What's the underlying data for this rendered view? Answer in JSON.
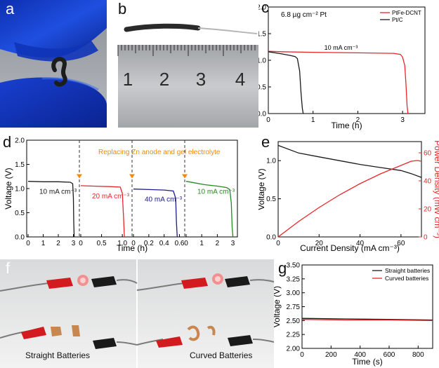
{
  "panels": {
    "a": {
      "label": "a"
    },
    "b": {
      "label": "b",
      "ruler_numbers": [
        "1",
        "2",
        "3",
        "4"
      ]
    },
    "c": {
      "label": "c"
    },
    "d": {
      "label": "d"
    },
    "e": {
      "label": "e"
    },
    "f": {
      "label": "f",
      "left_caption": "Straight Batteries",
      "right_caption": "Curved Batteries"
    },
    "g": {
      "label": "g"
    }
  },
  "colors": {
    "red": "#e8262a",
    "black": "#1a1a1a",
    "blue": "#1c1c8c",
    "green": "#1f8c1f",
    "orange": "#f08a0c"
  },
  "chart_data": [
    {
      "id": "c",
      "type": "line",
      "xlabel": "Time (h)",
      "ylabel": "Voltage (V)",
      "xlim": [
        0,
        3.5
      ],
      "ylim": [
        0,
        2.0
      ],
      "xticks": [
        0,
        1,
        2,
        3
      ],
      "yticks": [
        0.0,
        0.5,
        1.0,
        1.5,
        2.0
      ],
      "ytick_labels": [
        "0.0",
        "0.5",
        "1.0",
        "1.5",
        "2.0"
      ],
      "annotations": [
        "6.8 µg cm⁻² Pt",
        "10 mA cm⁻³"
      ],
      "legend_placement": "top-right",
      "series": [
        {
          "name": "PtFe-DCNT",
          "color": "#e8262a",
          "x": [
            0,
            0.3,
            1.0,
            2.0,
            2.8,
            2.95,
            3.0,
            3.05,
            3.08,
            3.1,
            3.12
          ],
          "y": [
            1.17,
            1.16,
            1.15,
            1.14,
            1.13,
            1.11,
            1.06,
            0.9,
            0.5,
            0.15,
            0.0
          ]
        },
        {
          "name": "Pt/C",
          "color": "#1a1a1a",
          "x": [
            0,
            0.3,
            0.5,
            0.6,
            0.65,
            0.7,
            0.73,
            0.76,
            0.78
          ],
          "y": [
            1.16,
            1.12,
            1.09,
            1.07,
            1.03,
            0.8,
            0.4,
            0.1,
            0.0
          ]
        }
      ]
    },
    {
      "id": "d",
      "type": "line",
      "xlabel": "Time (h)",
      "ylabel": "Voltage (V)",
      "ylim": [
        0,
        2.0
      ],
      "yticks": [
        0.0,
        0.5,
        1.0,
        1.5,
        2.0
      ],
      "ytick_labels": [
        "0.0",
        "0.5",
        "1.0",
        "1.5",
        "2.0"
      ],
      "annotation": "Replacing Zn anode and gel electrolyte",
      "segments": [
        {
          "label": "10 mA cm⁻³",
          "color": "#1a1a1a",
          "xlim": [
            0,
            3.3
          ],
          "xticks": [
            0,
            1,
            2,
            3
          ],
          "xtick_labels": [
            "0",
            "1",
            "2",
            "3"
          ],
          "x": [
            0,
            1,
            2,
            2.8,
            2.95,
            3.0,
            3.02,
            3.05
          ],
          "y": [
            1.15,
            1.14,
            1.14,
            1.13,
            1.1,
            0.8,
            0.3,
            0.0
          ]
        },
        {
          "label": "20 mA cm⁻³",
          "color": "#e8262a",
          "xlim": [
            0,
            1.2
          ],
          "xticks": [
            0,
            0.5,
            1.0
          ],
          "xtick_labels": [
            "0",
            "0.5",
            "1.0"
          ],
          "x": [
            0,
            0.3,
            0.7,
            0.95,
            1.0,
            1.03,
            1.05
          ],
          "y": [
            1.06,
            1.05,
            1.04,
            1.03,
            0.9,
            0.4,
            0.0
          ]
        },
        {
          "label": "40 mA cm⁻³",
          "color": "#1c1c8c",
          "xlim": [
            0,
            0.65
          ],
          "xticks": [
            0,
            0.2,
            0.4,
            0.6
          ],
          "xtick_labels": [
            "0",
            "0.2",
            "0.4",
            "0.6"
          ],
          "x": [
            0,
            0.2,
            0.4,
            0.52,
            0.55,
            0.56,
            0.57
          ],
          "y": [
            0.99,
            0.98,
            0.97,
            0.95,
            0.8,
            0.3,
            0.0
          ]
        },
        {
          "label": "10 mA cm⁻³",
          "color": "#1f8c1f",
          "xlim": [
            0,
            3.2
          ],
          "xticks": [
            0,
            1,
            2,
            3
          ],
          "xtick_labels": [
            "0",
            "1",
            "2",
            "3"
          ],
          "x": [
            0,
            0.5,
            1.2,
            2.0,
            2.6,
            2.8,
            2.9,
            2.95,
            3.0
          ],
          "y": [
            1.15,
            1.12,
            1.08,
            1.05,
            1.02,
            0.98,
            0.7,
            0.2,
            0.0
          ]
        }
      ]
    },
    {
      "id": "e",
      "type": "line",
      "xlabel": "Current Density (mA cm⁻³)",
      "ylabel": "Voltage (V)",
      "y2label": "Power Density (mW cm⁻³)",
      "xlim": [
        0,
        70
      ],
      "ylim": [
        0,
        1.25
      ],
      "y2lim": [
        0,
        68
      ],
      "xticks": [
        0,
        20,
        40,
        60
      ],
      "yticks": [
        0.0,
        0.5,
        1.0
      ],
      "ytick_labels": [
        "0.0",
        "0.5",
        "1.0"
      ],
      "y2ticks": [
        0,
        20,
        40,
        60
      ],
      "series": [
        {
          "name": "voltage",
          "color": "#1a1a1a",
          "axis": "left",
          "x": [
            0,
            10,
            20,
            30,
            40,
            50,
            60,
            65,
            70
          ],
          "y": [
            1.2,
            1.1,
            1.05,
            1.0,
            0.95,
            0.91,
            0.87,
            0.83,
            0.78
          ]
        },
        {
          "name": "power",
          "color": "#e8262a",
          "axis": "right",
          "x": [
            0,
            10,
            20,
            30,
            40,
            50,
            60,
            65,
            68,
            70
          ],
          "y": [
            0,
            11,
            21,
            30,
            38,
            45,
            51,
            54,
            54.5,
            54
          ]
        }
      ]
    },
    {
      "id": "g",
      "type": "line",
      "xlabel": "Time (s)",
      "ylabel": "Voltage (V)",
      "xlim": [
        0,
        900
      ],
      "ylim": [
        2.0,
        3.5
      ],
      "xticks": [
        0,
        200,
        400,
        600,
        800
      ],
      "yticks": [
        2.0,
        2.25,
        2.5,
        2.75,
        3.0,
        3.25,
        3.5
      ],
      "ytick_labels": [
        "2.00",
        "2.25",
        "2.50",
        "2.75",
        "3.00",
        "3.25",
        "3.50"
      ],
      "legend_placement": "top-right",
      "series": [
        {
          "name": "Straight batteries",
          "color": "#1a1a1a",
          "x": [
            0,
            300,
            600,
            900
          ],
          "y": [
            2.54,
            2.53,
            2.52,
            2.51
          ]
        },
        {
          "name": "Curved batteries",
          "color": "#e8262a",
          "x": [
            0,
            300,
            600,
            900
          ],
          "y": [
            2.52,
            2.51,
            2.51,
            2.5
          ]
        }
      ]
    }
  ]
}
